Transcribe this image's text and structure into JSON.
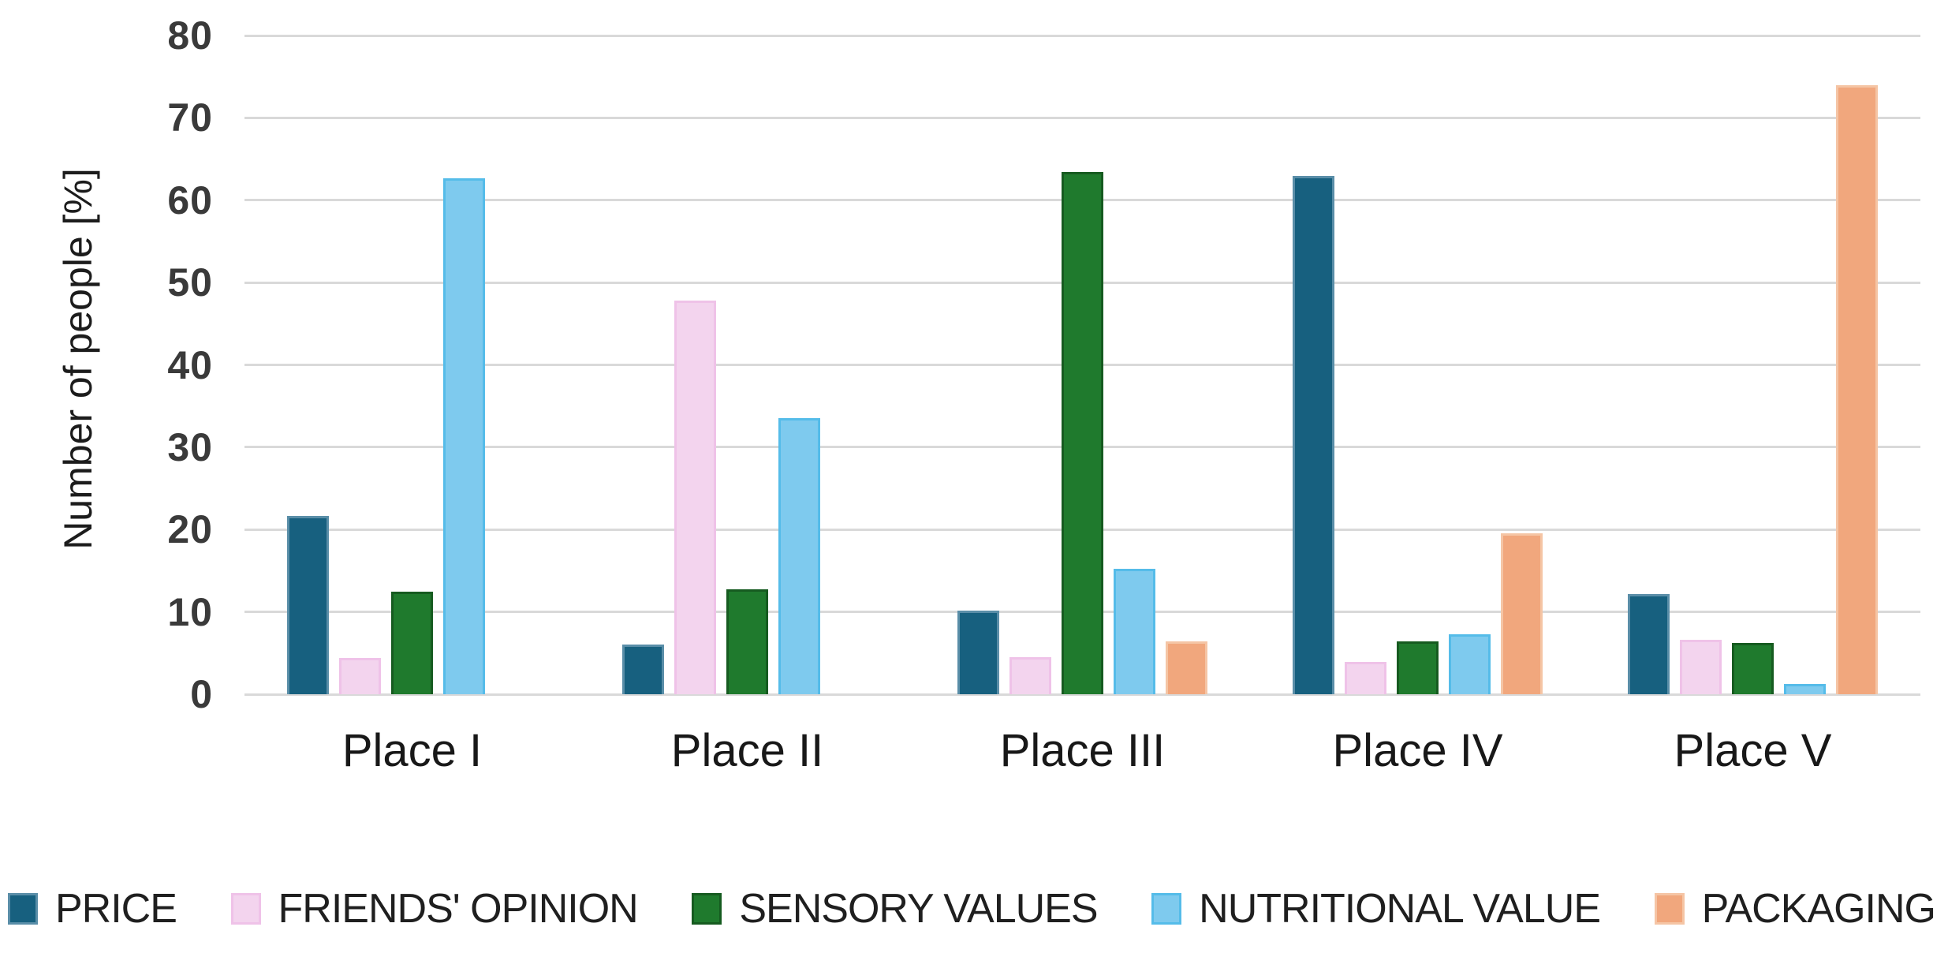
{
  "chart_data": {
    "type": "bar",
    "title": "",
    "xlabel": "",
    "ylabel": "Number of people [%]",
    "ylim": [
      0,
      80
    ],
    "yticks": [
      0,
      10,
      20,
      30,
      40,
      50,
      60,
      70,
      80
    ],
    "grid": "horizontal-only",
    "gridline_color": "#d9d9d9",
    "legend_position": "bottom",
    "categories": [
      "Place I",
      "Place II",
      "Place III",
      "Place IV",
      "Place V"
    ],
    "series": [
      {
        "name": "PRICE",
        "color": "#17607F",
        "border": "#5A8EA8",
        "values": [
          21.7,
          6.0,
          10.2,
          62.9,
          12.2
        ]
      },
      {
        "name": "FRIENDS' OPINION",
        "color": "#F3D4EE",
        "border": "#EFC2E8",
        "values": [
          4.4,
          47.8,
          4.5,
          3.9,
          6.6
        ]
      },
      {
        "name": "SENSORY VALUES",
        "color": "#1F7A2D",
        "border": "#165B20",
        "values": [
          12.5,
          12.7,
          63.4,
          6.4,
          6.2
        ]
      },
      {
        "name": "NUTRITIONAL VALUE",
        "color": "#7ECAEE",
        "border": "#55BCE9",
        "values": [
          62.7,
          33.5,
          15.2,
          7.3,
          1.2
        ]
      },
      {
        "name": "PACKAGING",
        "color": "#F1A77D",
        "border": "#F5C5A5",
        "values": [
          0,
          0,
          6.4,
          19.5,
          74.0
        ]
      }
    ]
  }
}
